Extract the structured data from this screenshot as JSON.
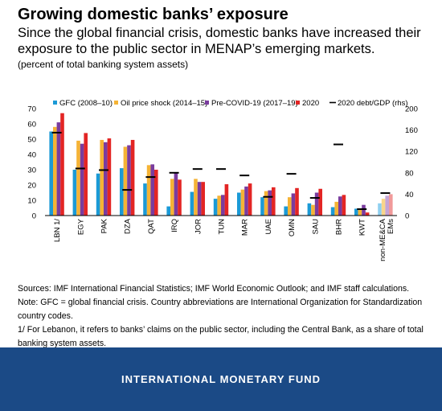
{
  "header": {
    "title": "Growing domestic banks’ exposure",
    "subtitle": "Since the global financial crisis, domestic banks have increased their exposure to the public sector in MENAP’s emerging markets.",
    "unit": "(percent of total banking system assets)"
  },
  "notes": {
    "sources": "Sources: IMF International Financial Statistics; IMF World Economic Outlook; and IMF staff calculations.",
    "note": "Note: GFC = global financial crisis. Country abbreviations are International Organization for Standardization country codes.",
    "footnote": "1/ For Lebanon, it refers to banks’ claims on the public sector, including the Central Bank, as a share of total banking system assets."
  },
  "footer": {
    "label": "INTERNATIONAL MONETARY FUND"
  },
  "chart_data": {
    "type": "bar",
    "categories": [
      "LBN 1/",
      "EGY",
      "PAK",
      "DZA",
      "QAT",
      "IRQ",
      "JOR",
      "TUN",
      "MAR",
      "UAE",
      "OMN",
      "SAU",
      "BHR",
      "KWT",
      "non-ME&CA EMs"
    ],
    "series": [
      {
        "name": "GFC (2008–10)",
        "color": "#1b9ad6",
        "values": [
          55,
          30,
          27.5,
          31,
          21,
          6,
          15.5,
          11,
          15,
          12,
          6,
          8,
          5.5,
          4.5,
          8
        ]
      },
      {
        "name": "Oil price shock (2014–15)",
        "color": "#f5b335",
        "values": [
          58,
          49,
          49.5,
          45,
          33,
          24,
          24,
          13,
          17,
          16,
          12,
          7,
          9,
          4,
          11
        ]
      },
      {
        "name": "Pre-COVID-19 (2017–19)",
        "color": "#7a3c9e",
        "values": [
          61,
          47,
          48,
          46,
          33.5,
          28,
          22,
          13.5,
          19,
          16.5,
          14.5,
          15,
          12.5,
          7,
          13
        ]
      },
      {
        "name": "2020",
        "color": "#e32524",
        "values": [
          67,
          54,
          50.5,
          49.5,
          30,
          23.5,
          22,
          20.5,
          21,
          18.5,
          18,
          17.5,
          13.5,
          2,
          14
        ]
      }
    ],
    "overlay": {
      "name": "2020 debt/GDP (rhs)",
      "type": "marker-dash",
      "axis": "right",
      "values": [
        155,
        88,
        85,
        48,
        72,
        80,
        87,
        87,
        75,
        35,
        78,
        33,
        133,
        12,
        42
      ]
    },
    "left_axis": {
      "min": 0,
      "max": 70,
      "ticks": [
        0,
        5,
        10,
        15,
        20,
        25,
        30,
        35,
        40,
        45,
        50,
        55,
        60,
        65,
        70
      ]
    },
    "right_axis": {
      "min": 0,
      "max": 200,
      "ticks": [
        0,
        40,
        80,
        120,
        160,
        200
      ]
    },
    "grid": false,
    "legend_position": "top"
  }
}
